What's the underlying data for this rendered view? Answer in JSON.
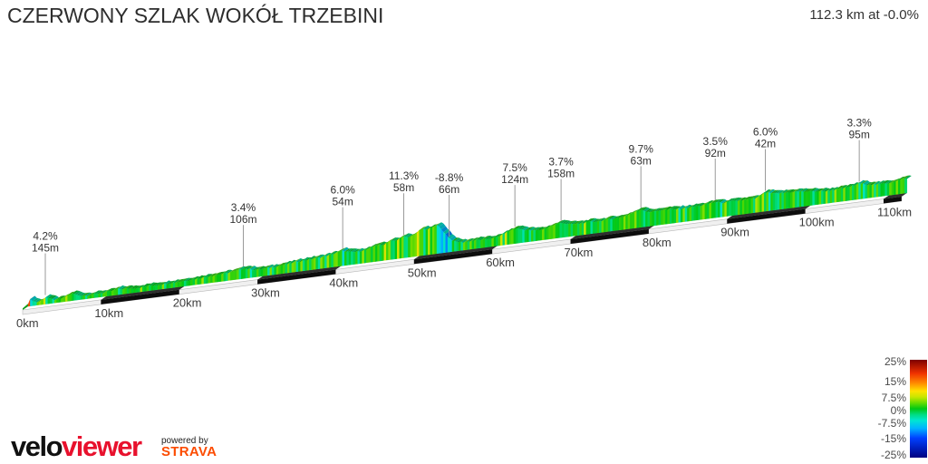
{
  "header": {
    "title": "CZERWONY SZLAK WOKÓŁ TRZEBINI",
    "summary": "112.3 km at -0.0%"
  },
  "logo": {
    "velo": "velo",
    "viewer": "viewer",
    "velo_color": "#111111",
    "viewer_color": "#e8112d",
    "powered_by": "powered by",
    "strava": "STRAVA",
    "strava_color": "#fc4c02"
  },
  "chart_data": {
    "type": "area",
    "title": "CZERWONY SZLAK WOKÓŁ TRZEBINI",
    "total_km": 112.3,
    "avg_grade_label": "-0.0%",
    "x_tick_labels": [
      "0km",
      "10km",
      "20km",
      "30km",
      "40km",
      "50km",
      "60km",
      "70km",
      "80km",
      "90km",
      "100km",
      "110km"
    ],
    "legend_labels": [
      "25%",
      "15%",
      "7.5%",
      "0%",
      "-7.5%",
      "-15%",
      "-25%"
    ],
    "legend_range_pct": [
      -25,
      25
    ],
    "colormap": [
      [
        -25,
        "#000080"
      ],
      [
        -15,
        "#0040ff"
      ],
      [
        -10,
        "#00b4ff"
      ],
      [
        -6,
        "#00e6d2"
      ],
      [
        -3,
        "#00dc82"
      ],
      [
        0,
        "#00c814"
      ],
      [
        3,
        "#66dc00"
      ],
      [
        6,
        "#c8e600"
      ],
      [
        9,
        "#ffe100"
      ],
      [
        13,
        "#ff8c00"
      ],
      [
        18,
        "#f03200"
      ],
      [
        25,
        "#7d0000"
      ]
    ],
    "annotations": [
      {
        "grade": "4.2%",
        "height": "145m",
        "km": 2.2
      },
      {
        "grade": "3.4%",
        "height": "106m",
        "km": 27.5
      },
      {
        "grade": "6.0%",
        "height": "54m",
        "km": 40.2
      },
      {
        "grade": "11.3%",
        "height": "58m",
        "km": 48.0
      },
      {
        "grade": "-8.8%",
        "height": "66m",
        "km": 53.8
      },
      {
        "grade": "7.5%",
        "height": "124m",
        "km": 62.2
      },
      {
        "grade": "3.7%",
        "height": "158m",
        "km": 68.1
      },
      {
        "grade": "9.7%",
        "height": "63m",
        "km": 78.3
      },
      {
        "grade": "3.5%",
        "height": "92m",
        "km": 87.8
      },
      {
        "grade": "6.0%",
        "height": "42m",
        "km": 94.2
      },
      {
        "grade": "3.3%",
        "height": "95m",
        "km": 106.2
      }
    ],
    "profile_rel_elevation_m": [
      [
        0,
        10
      ],
      [
        0.35,
        28
      ],
      [
        0.7,
        16
      ],
      [
        1.2,
        10
      ],
      [
        1.8,
        16
      ],
      [
        2.2,
        28
      ],
      [
        2.7,
        18
      ],
      [
        3.5,
        10
      ],
      [
        4.5,
        14
      ],
      [
        5.2,
        25
      ],
      [
        5.8,
        26
      ],
      [
        6.4,
        16
      ],
      [
        7.5,
        12
      ],
      [
        9,
        14
      ],
      [
        10.5,
        16
      ],
      [
        11.5,
        21
      ],
      [
        12.5,
        18
      ],
      [
        14,
        16
      ],
      [
        15.5,
        18
      ],
      [
        17,
        18
      ],
      [
        19,
        19
      ],
      [
        21,
        21
      ],
      [
        23,
        25
      ],
      [
        25,
        28
      ],
      [
        26.5,
        32
      ],
      [
        27.5,
        39
      ],
      [
        28.3,
        32
      ],
      [
        29.5,
        26
      ],
      [
        31,
        28
      ],
      [
        33,
        33
      ],
      [
        35,
        39
      ],
      [
        37,
        42
      ],
      [
        38.5,
        47
      ],
      [
        39.5,
        53
      ],
      [
        40.2,
        58
      ],
      [
        40.9,
        49
      ],
      [
        42,
        46
      ],
      [
        43.5,
        51
      ],
      [
        44.5,
        63
      ],
      [
        45.3,
        58
      ],
      [
        46.2,
        74
      ],
      [
        47,
        67
      ],
      [
        47.8,
        84
      ],
      [
        48.6,
        74
      ],
      [
        49.5,
        88
      ],
      [
        50.3,
        102
      ],
      [
        51,
        95
      ],
      [
        51.8,
        109
      ],
      [
        52.4,
        105
      ],
      [
        53,
        84
      ],
      [
        53.8,
        53
      ],
      [
        54.6,
        35
      ],
      [
        55.5,
        30
      ],
      [
        57,
        32
      ],
      [
        58.5,
        30
      ],
      [
        60,
        33
      ],
      [
        61,
        46
      ],
      [
        62.2,
        58
      ],
      [
        62.8,
        53
      ],
      [
        63.5,
        47
      ],
      [
        64.5,
        40
      ],
      [
        65.5,
        39
      ],
      [
        66.5,
        46
      ],
      [
        67.5,
        53
      ],
      [
        68.1,
        58
      ],
      [
        69,
        47
      ],
      [
        70,
        44
      ],
      [
        71.5,
        46
      ],
      [
        73,
        44
      ],
      [
        74.5,
        47
      ],
      [
        75.5,
        46
      ],
      [
        76.5,
        53
      ],
      [
        77.5,
        61
      ],
      [
        78.3,
        68
      ],
      [
        79.2,
        56
      ],
      [
        80,
        53
      ],
      [
        81,
        56
      ],
      [
        82,
        53
      ],
      [
        84,
        51
      ],
      [
        86,
        53
      ],
      [
        87.8,
        60
      ],
      [
        88.6,
        53
      ],
      [
        90,
        54
      ],
      [
        91.5,
        53
      ],
      [
        93,
        54
      ],
      [
        93.7,
        65
      ],
      [
        94.2,
        72
      ],
      [
        95.2,
        63
      ],
      [
        96.5,
        61
      ],
      [
        98,
        60
      ],
      [
        100,
        53
      ],
      [
        102,
        47
      ],
      [
        104,
        49
      ],
      [
        105.5,
        54
      ],
      [
        106.2,
        60
      ],
      [
        107,
        53
      ],
      [
        108.5,
        47
      ],
      [
        110,
        47
      ],
      [
        111,
        53
      ],
      [
        112.3,
        56
      ]
    ]
  }
}
